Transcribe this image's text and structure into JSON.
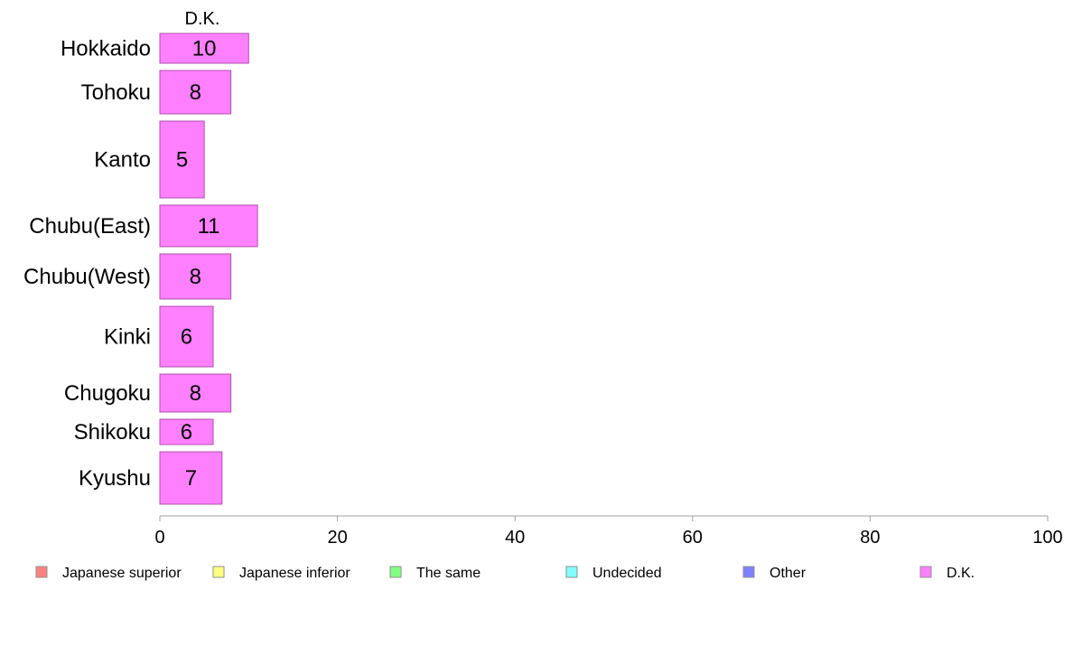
{
  "chart_data": {
    "type": "bar",
    "orientation": "horizontal",
    "title": "D.K.",
    "categories": [
      "Hokkaido",
      "Tohoku",
      "Kanto",
      "Chubu(East)",
      "Chubu(West)",
      "Kinki",
      "Chugoku",
      "Shikoku",
      "Kyushu"
    ],
    "series": [
      {
        "name": "D.K.",
        "values": [
          10,
          8,
          5,
          11,
          8,
          6,
          8,
          6,
          7
        ],
        "color": "#ff80ff"
      }
    ],
    "xlim": [
      0,
      100
    ],
    "xticks": [
      "0",
      "20",
      "40",
      "60",
      "80",
      "100"
    ],
    "grid": false,
    "legend_position": "bottom",
    "legend": [
      {
        "label": "Japanese superior",
        "color": "#ff8080"
      },
      {
        "label": "Japanese inferior",
        "color": "#ffff80"
      },
      {
        "label": "The same",
        "color": "#80ff80"
      },
      {
        "label": "Undecided",
        "color": "#80ffff"
      },
      {
        "label": "Other",
        "color": "#8080ff"
      },
      {
        "label": "D.K.",
        "color": "#ff80ff"
      }
    ]
  }
}
